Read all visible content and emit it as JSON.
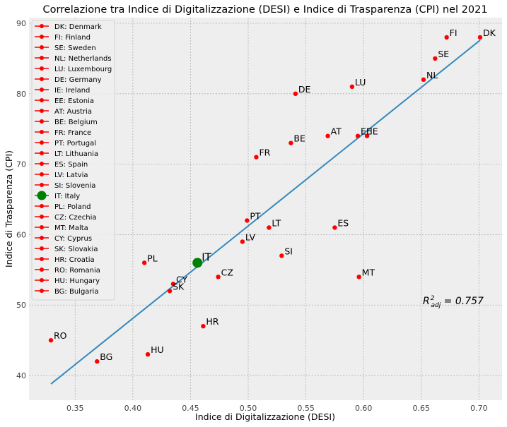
{
  "chart_data": {
    "type": "scatter",
    "title": "Correlazione tra Indice di Digitalizzazione (DESI) e Indice di Trasparenza (CPI) nel 2021",
    "xlabel": "Indice di Digitalizzazione (DESI)",
    "ylabel": "Indice di Trasparenza (CPI)",
    "xlim": [
      0.31,
      0.72
    ],
    "ylim": [
      36.5,
      90.8
    ],
    "xticks": [
      0.35,
      0.4,
      0.45,
      0.5,
      0.55,
      0.6,
      0.65,
      0.7
    ],
    "xtick_labels": [
      "0.35",
      "0.40",
      "0.45",
      "0.50",
      "0.55",
      "0.60",
      "0.65",
      "0.70"
    ],
    "yticks": [
      40,
      50,
      60,
      70,
      80,
      90
    ],
    "ytick_labels": [
      "40",
      "50",
      "60",
      "70",
      "80",
      "90"
    ],
    "grid": true,
    "legend_position": "upper-left",
    "annotation": "R²adj = 0.757",
    "point_color": "#ff0000",
    "highlight_color": "#008000",
    "line_color": "#348abd",
    "background": "#eeeeee",
    "points": [
      {
        "code": "DK",
        "name": "DK: Denmark",
        "x": 0.701,
        "y": 88
      },
      {
        "code": "FI",
        "name": "FI: Finland",
        "x": 0.672,
        "y": 88
      },
      {
        "code": "SE",
        "name": "SE: Sweden",
        "x": 0.662,
        "y": 85
      },
      {
        "code": "NL",
        "name": "NL: Netherlands",
        "x": 0.652,
        "y": 82
      },
      {
        "code": "LU",
        "name": "LU: Luxembourg",
        "x": 0.59,
        "y": 81
      },
      {
        "code": "DE",
        "name": "DE: Germany",
        "x": 0.541,
        "y": 80
      },
      {
        "code": "IE",
        "name": "IE: Ireland",
        "x": 0.603,
        "y": 74
      },
      {
        "code": "EE",
        "name": "EE: Estonia",
        "x": 0.595,
        "y": 74
      },
      {
        "code": "AT",
        "name": "AT: Austria",
        "x": 0.569,
        "y": 74
      },
      {
        "code": "BE",
        "name": "BE: Belgium",
        "x": 0.537,
        "y": 73
      },
      {
        "code": "FR",
        "name": "FR: France",
        "x": 0.507,
        "y": 71
      },
      {
        "code": "PT",
        "name": "PT: Portugal",
        "x": 0.499,
        "y": 62
      },
      {
        "code": "LT",
        "name": "LT: Lithuania",
        "x": 0.518,
        "y": 61
      },
      {
        "code": "ES",
        "name": "ES: Spain",
        "x": 0.575,
        "y": 61
      },
      {
        "code": "LV",
        "name": "LV: Latvia",
        "x": 0.495,
        "y": 59
      },
      {
        "code": "SI",
        "name": "SI: Slovenia",
        "x": 0.529,
        "y": 57
      },
      {
        "code": "IT",
        "name": "IT: Italy",
        "x": 0.456,
        "y": 56,
        "highlight": true
      },
      {
        "code": "PL",
        "name": "PL: Poland",
        "x": 0.41,
        "y": 56
      },
      {
        "code": "CZ",
        "name": "CZ: Czechia",
        "x": 0.474,
        "y": 54
      },
      {
        "code": "MT",
        "name": "MT: Malta",
        "x": 0.596,
        "y": 54
      },
      {
        "code": "CY",
        "name": "CY: Cyprus",
        "x": 0.435,
        "y": 53
      },
      {
        "code": "SK",
        "name": "SK: Slovakia",
        "x": 0.432,
        "y": 52
      },
      {
        "code": "HR",
        "name": "HR: Croatia",
        "x": 0.461,
        "y": 47
      },
      {
        "code": "RO",
        "name": "RO: Romania",
        "x": 0.329,
        "y": 45
      },
      {
        "code": "HU",
        "name": "HU: Hungary",
        "x": 0.413,
        "y": 43
      },
      {
        "code": "BG",
        "name": "BG: Bulgaria",
        "x": 0.369,
        "y": 42
      }
    ],
    "regression": {
      "x": [
        0.329,
        0.701
      ],
      "y": [
        38.8,
        87.6
      ]
    }
  }
}
